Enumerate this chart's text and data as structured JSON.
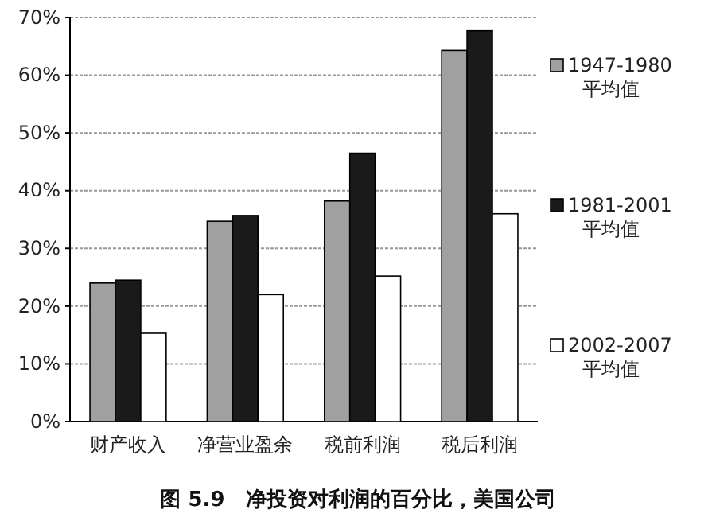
{
  "chart_data": {
    "type": "bar",
    "title": "图 5.9　净投资对利润的百分比，美国公司",
    "categories": [
      "财产收入",
      "净营业盈余",
      "税前利润",
      "税后利润"
    ],
    "series": [
      {
        "name": "1947-1980 平均值",
        "color": "#a0a0a0",
        "values": [
          24,
          34.7,
          38.2,
          64.3
        ]
      },
      {
        "name": "1981-2001 平均值",
        "color": "#1a1a1a",
        "values": [
          24.5,
          35.7,
          46.5,
          67.7
        ]
      },
      {
        "name": "2002-2007 平均值",
        "color": "#ffffff",
        "values": [
          15.3,
          22,
          25.2,
          36
        ]
      }
    ],
    "ylim": [
      0,
      70
    ],
    "yticks": [
      {
        "value": 0,
        "label": "0%"
      },
      {
        "value": 10,
        "label": "10%"
      },
      {
        "value": 20,
        "label": "20%"
      },
      {
        "value": 30,
        "label": "30%"
      },
      {
        "value": 40,
        "label": "40%"
      },
      {
        "value": 50,
        "label": "50%"
      },
      {
        "value": 60,
        "label": "60%"
      },
      {
        "value": 70,
        "label": "70%"
      }
    ],
    "grid": "y",
    "legend": "right"
  }
}
